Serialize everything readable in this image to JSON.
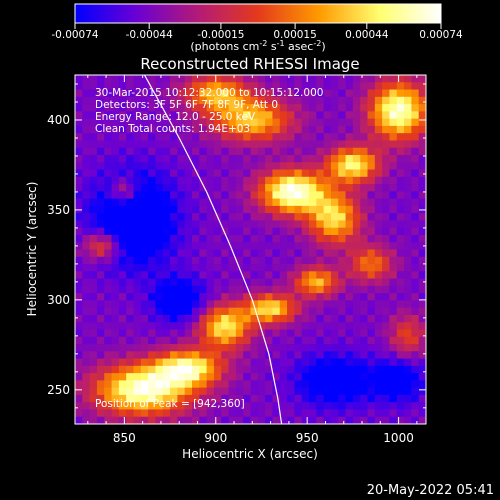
{
  "chart_data": {
    "type": "heatmap",
    "title": "Reconstructed RHESSI Image",
    "xlabel": "Heliocentric X (arcsec)",
    "ylabel": "Heliocentric Y (arcsec)",
    "xlim": [
      823,
      1015
    ],
    "ylim": [
      231,
      425
    ],
    "xticks": [
      850,
      900,
      950,
      1000
    ],
    "yticks": [
      250,
      300,
      350,
      400
    ],
    "xtick_labels": [
      "850",
      "900",
      "950",
      "1000"
    ],
    "ytick_labels": [
      "250",
      "300",
      "350",
      "400"
    ],
    "colorbar": {
      "min": -0.00074,
      "max": 0.00074,
      "ticks": [
        -0.00074,
        -0.00044,
        -0.00015,
        0.00015,
        0.00044,
        0.00074
      ],
      "tick_labels": [
        "-0.00074",
        "-0.00044",
        "-0.00015",
        "0.00015",
        "0.00044",
        "0.00074"
      ],
      "unit_label_parts": [
        "(photons cm",
        "-2",
        " s",
        "-1",
        " asec",
        "-2",
        ")"
      ],
      "colors": [
        "#0000ff",
        "#6a00d4",
        "#b21a78",
        "#e43a1c",
        "#ff9a00",
        "#ffff70",
        "#ffffff"
      ]
    },
    "annotations": [
      "30-Mar-2015 10:12:32.000 to 10:15:12.000",
      "Detectors: 3F 5F 6F 7F 8F 9F, Att 0",
      "Energy Range: 12.0 - 25.0 keV",
      "Clean     Total counts: 1.94E+03"
    ],
    "position_label": "Position of Peak = [942,360]",
    "limb_curve": [
      [
        861,
        425
      ],
      [
        880,
        390
      ],
      [
        895,
        360
      ],
      [
        908,
        330
      ],
      [
        920,
        300
      ],
      [
        929,
        270
      ],
      [
        934,
        245
      ],
      [
        936,
        231
      ]
    ],
    "bright_regions": [
      {
        "x": 860,
        "y": 250,
        "level": 0.97,
        "rx": 26,
        "ry": 14
      },
      {
        "x": 885,
        "y": 262,
        "level": 0.85,
        "rx": 18,
        "ry": 10
      },
      {
        "x": 905,
        "y": 285,
        "level": 0.82,
        "rx": 14,
        "ry": 12
      },
      {
        "x": 930,
        "y": 295,
        "level": 0.8,
        "rx": 14,
        "ry": 8
      },
      {
        "x": 955,
        "y": 310,
        "level": 0.72,
        "rx": 12,
        "ry": 8
      },
      {
        "x": 942,
        "y": 360,
        "level": 1.0,
        "rx": 18,
        "ry": 12
      },
      {
        "x": 965,
        "y": 345,
        "level": 0.78,
        "rx": 14,
        "ry": 14
      },
      {
        "x": 975,
        "y": 375,
        "level": 0.85,
        "rx": 14,
        "ry": 10
      },
      {
        "x": 1000,
        "y": 405,
        "level": 0.95,
        "rx": 16,
        "ry": 16
      },
      {
        "x": 920,
        "y": 400,
        "level": 0.75,
        "rx": 22,
        "ry": 12
      },
      {
        "x": 900,
        "y": 415,
        "level": 0.7,
        "rx": 18,
        "ry": 10
      },
      {
        "x": 985,
        "y": 320,
        "level": 0.6,
        "rx": 12,
        "ry": 10
      },
      {
        "x": 1005,
        "y": 280,
        "level": 0.5,
        "rx": 10,
        "ry": 12
      },
      {
        "x": 838,
        "y": 330,
        "level": 0.6,
        "rx": 10,
        "ry": 8
      },
      {
        "x": 850,
        "y": 360,
        "level": 0.55,
        "rx": 8,
        "ry": 8
      }
    ],
    "dark_regions": [
      {
        "x": 855,
        "y": 345,
        "depth": 0.45,
        "rx": 22,
        "ry": 25
      },
      {
        "x": 880,
        "y": 300,
        "depth": 0.35,
        "rx": 14,
        "ry": 12
      },
      {
        "x": 965,
        "y": 255,
        "depth": 0.35,
        "rx": 20,
        "ry": 14
      },
      {
        "x": 1000,
        "y": 255,
        "depth": 0.3,
        "rx": 14,
        "ry": 12
      }
    ],
    "background_level": 0.2
  },
  "footer": {
    "timestamp": "20-May-2022 05:41"
  }
}
